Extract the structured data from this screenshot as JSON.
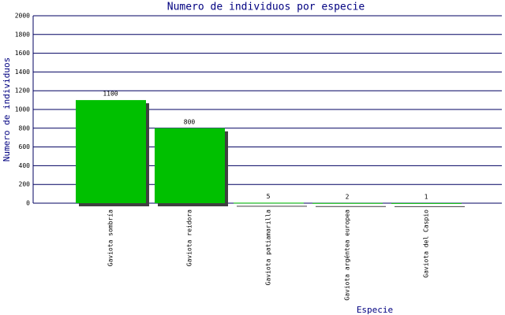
{
  "chart_data": {
    "type": "bar",
    "title": "Numero de individuos por especie",
    "x_label": "Especie",
    "y_label": "Numero de individuos",
    "categories": [
      "Gaviota sombría",
      "Gaviota reidora",
      "Gaviota patiamarilla",
      "Gaviota argéntea europea",
      "Gaviota del Caspio"
    ],
    "values": [
      1100,
      800,
      5,
      2,
      1
    ],
    "color": "#00c000",
    "ylim": [
      0,
      2000
    ],
    "yticks": [
      0,
      200,
      400,
      600,
      800,
      1000,
      1200,
      1400,
      1600,
      1800,
      2000
    ],
    "grid": true
  }
}
